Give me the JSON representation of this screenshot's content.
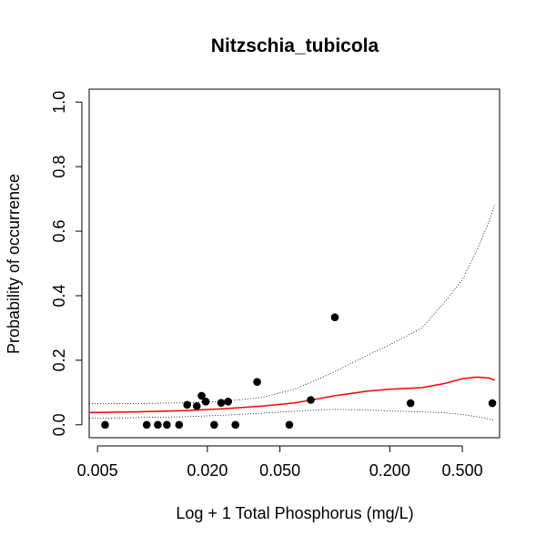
{
  "chart_data": {
    "type": "scatter",
    "title": "Nitzschia_tubicola",
    "xlabel": "Log + 1 Total Phosphorus (mg/L)",
    "ylabel": "Probability of occurrence",
    "xscale": "log",
    "xlim": [
      0.0045,
      0.8
    ],
    "ylim": [
      -0.04,
      1.04
    ],
    "x_ticks": [
      0.005,
      0.02,
      0.05,
      0.2,
      0.5
    ],
    "x_tick_labels": [
      "0.005",
      "0.020",
      "0.050",
      "0.200",
      "0.500"
    ],
    "y_ticks": [
      0.0,
      0.2,
      0.4,
      0.6,
      0.8,
      1.0
    ],
    "y_tick_labels": [
      "0.0",
      "0.2",
      "0.4",
      "0.6",
      "0.8",
      "1.0"
    ],
    "colors": {
      "points": "#000000",
      "fit": "#ff0000",
      "ci": "#000000"
    },
    "points": [
      {
        "x": 0.0055,
        "y": 0.0
      },
      {
        "x": 0.0093,
        "y": 0.0
      },
      {
        "x": 0.0107,
        "y": 0.0
      },
      {
        "x": 0.012,
        "y": 0.0
      },
      {
        "x": 0.014,
        "y": 0.0
      },
      {
        "x": 0.0155,
        "y": 0.062
      },
      {
        "x": 0.0175,
        "y": 0.058
      },
      {
        "x": 0.0186,
        "y": 0.09
      },
      {
        "x": 0.0196,
        "y": 0.072
      },
      {
        "x": 0.0218,
        "y": 0.0
      },
      {
        "x": 0.0238,
        "y": 0.068
      },
      {
        "x": 0.026,
        "y": 0.072
      },
      {
        "x": 0.0285,
        "y": 0.0
      },
      {
        "x": 0.0375,
        "y": 0.133
      },
      {
        "x": 0.0563,
        "y": 0.0
      },
      {
        "x": 0.0738,
        "y": 0.077
      },
      {
        "x": 0.1,
        "y": 0.333
      },
      {
        "x": 0.26,
        "y": 0.067
      },
      {
        "x": 0.73,
        "y": 0.067
      }
    ],
    "fit_line": {
      "x": [
        0.0045,
        0.008,
        0.015,
        0.025,
        0.04,
        0.06,
        0.08,
        0.1,
        0.15,
        0.2,
        0.3,
        0.4,
        0.5,
        0.6,
        0.7,
        0.75
      ],
      "y": [
        0.038,
        0.04,
        0.044,
        0.05,
        0.058,
        0.068,
        0.08,
        0.09,
        0.104,
        0.11,
        0.115,
        0.128,
        0.143,
        0.148,
        0.145,
        0.138
      ]
    },
    "ci_upper": {
      "x": [
        0.0045,
        0.008,
        0.015,
        0.025,
        0.04,
        0.06,
        0.08,
        0.1,
        0.15,
        0.2,
        0.3,
        0.4,
        0.5,
        0.6,
        0.7,
        0.75
      ],
      "y": [
        0.065,
        0.066,
        0.068,
        0.073,
        0.085,
        0.11,
        0.14,
        0.165,
        0.215,
        0.248,
        0.3,
        0.38,
        0.45,
        0.54,
        0.63,
        0.68
      ]
    },
    "ci_lower": {
      "x": [
        0.0045,
        0.008,
        0.015,
        0.025,
        0.04,
        0.06,
        0.08,
        0.1,
        0.15,
        0.2,
        0.3,
        0.4,
        0.5,
        0.6,
        0.7,
        0.75
      ],
      "y": [
        0.02,
        0.022,
        0.025,
        0.03,
        0.036,
        0.042,
        0.046,
        0.048,
        0.046,
        0.043,
        0.04,
        0.037,
        0.032,
        0.025,
        0.018,
        0.013
      ]
    }
  }
}
